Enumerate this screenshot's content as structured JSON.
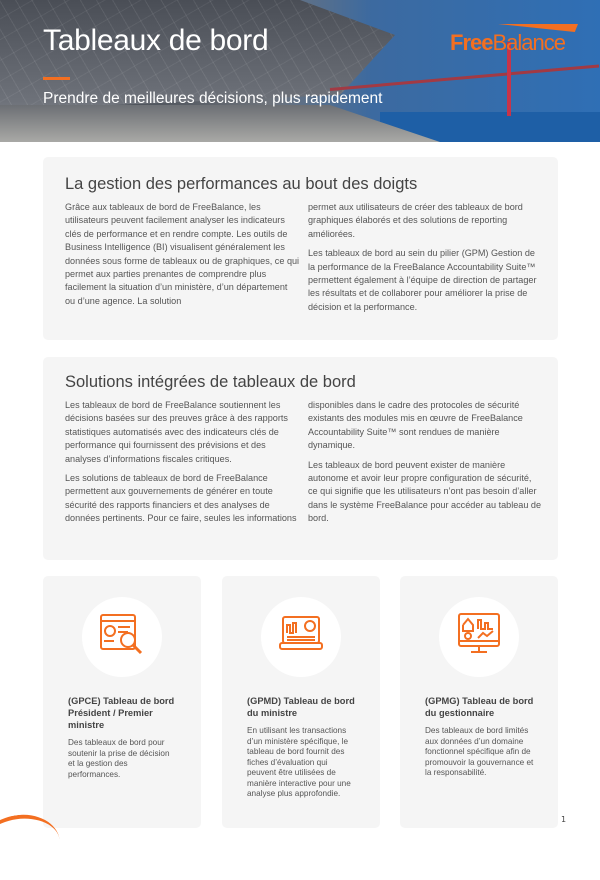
{
  "header": {
    "title": "Tableaux de bord",
    "subtitle": "Prendre de meilleures décisions, plus rapidement",
    "logo": "FreeBalance",
    "logo_bold": "Free",
    "logo_light": "Balance"
  },
  "colors": {
    "accent": "#f36f21",
    "panel": "#f5f5f5"
  },
  "section1": {
    "heading": "La gestion des performances au bout des doigts",
    "col1": [
      "Grâce aux tableaux de bord de FreeBalance, les utilisateurs peuvent facilement analyser les indicateurs clés de performance et en rendre compte. Les outils de Business Intelligence (BI) visualisent généralement les données sous forme de tableaux ou de graphiques, ce qui permet aux parties prenantes de comprendre plus facilement la situation d’un ministère, d’un département ou d’une agence. La solution"
    ],
    "col2": [
      "permet aux utilisateurs de créer des tableaux de bord graphiques élaborés et des solutions de reporting améliorées.",
      "Les tableaux de bord au sein du pilier (GPM) Gestion de la performance de la FreeBalance Accountability Suite™ permettent également à l’équipe de direction de partager les résultats et de collaborer pour améliorer la prise de décision et la performance."
    ]
  },
  "section2": {
    "heading": "Solutions intégrées de tableaux de bord",
    "col1": [
      "Les tableaux de bord de FreeBalance soutiennent les décisions basées sur des preuves grâce à des rapports statistiques automatisés avec des indicateurs clés de performance qui fournissent des prévisions et des analyses d’informations fiscales critiques.",
      "Les solutions de tableaux de bord de FreeBalance permettent aux gouvernements de générer en toute sécurité des rapports financiers et des analyses de données pertinents. Pour ce faire, seules les informations"
    ],
    "col2": [
      "disponibles dans le cadre des protocoles de sécurité existants des modules mis en œuvre de FreeBalance Accountability Suite™ sont rendues de manière dynamique.",
      "Les tableaux de bord peuvent exister de manière autonome et avoir leur propre configuration de sécurité, ce qui signifie que les utilisateurs n’ont pas besoin d’aller dans le système FreeBalance pour accéder au tableau de bord."
    ]
  },
  "cards": [
    {
      "icon": "dashboard-search-icon",
      "title": "(GPCE) Tableau de bord Président / Premier ministre",
      "desc": "Des tableaux de bord pour soutenir la prise de décision et la gestion des performances."
    },
    {
      "icon": "laptop-analytics-icon",
      "title": "(GPMD) Tableau de bord du ministre",
      "desc": "En utilisant les transactions d’un ministère spécifique, le tableau de bord fournit des fiches d’évaluation qui peuvent être utilisées de manière interactive pour une analyse plus approfondie."
    },
    {
      "icon": "monitor-dashboard-icon",
      "title": "(GPMG) Tableau de bord du gestionnaire",
      "desc": "Des tableaux de bord limités aux données d’un domaine fonctionnel spécifique afin de promouvoir la gouvernance et la responsabilité."
    }
  ],
  "page_number": "1"
}
